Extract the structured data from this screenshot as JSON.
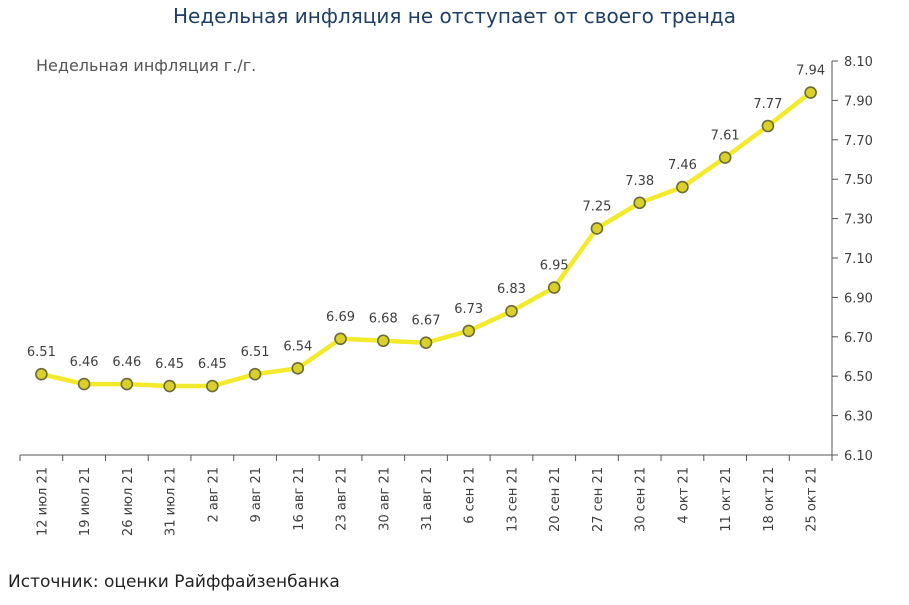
{
  "title": "Недельная инфляция не отступает от своего тренда",
  "source": "Источник: оценки Райффайзенбанка",
  "chart_data": {
    "type": "line",
    "title": "Недельная инфляция не отступает от своего тренда",
    "ylabel": "Недельная инфляция г./г.",
    "categories": [
      "12 июл 21",
      "19 июл 21",
      "26 июл 21",
      "31 июл 21",
      "2 авг 21",
      "9 авг 21",
      "16 авг 21",
      "23 авг 21",
      "30 авг 21",
      "31 авг 21",
      "6 сен 21",
      "13 сен 21",
      "20 сен 21",
      "27 сен 21",
      "30 сен 21",
      "4 окт 21",
      "11 окт 21",
      "18 окт 21",
      "25 окт 21"
    ],
    "values": [
      6.51,
      6.46,
      6.46,
      6.45,
      6.45,
      6.51,
      6.54,
      6.69,
      6.68,
      6.67,
      6.73,
      6.83,
      6.95,
      7.25,
      7.38,
      7.46,
      7.61,
      7.77,
      7.94
    ],
    "value_labels": [
      "6.51",
      "6.46",
      "6.46",
      "6.45",
      "6.45",
      "6.51",
      "6.54",
      "6.69",
      "6.68",
      "6.67",
      "6.73",
      "6.83",
      "6.95",
      "7.25",
      "7.38",
      "7.46",
      "7.61",
      "7.77",
      "7.94"
    ],
    "yticks": [
      "6.10",
      "6.30",
      "6.50",
      "6.70",
      "6.90",
      "7.10",
      "7.30",
      "7.50",
      "7.70",
      "7.90",
      "8.10"
    ],
    "ylim": [
      6.1,
      8.1
    ],
    "y_axis_position": "right",
    "grid": false,
    "legend": "none",
    "colors": {
      "line": "#f2ea2a",
      "marker_fill": "#d9d02a",
      "marker_stroke": "#6b6b3a",
      "axis": "#555555",
      "title": "#1f3f66"
    }
  }
}
